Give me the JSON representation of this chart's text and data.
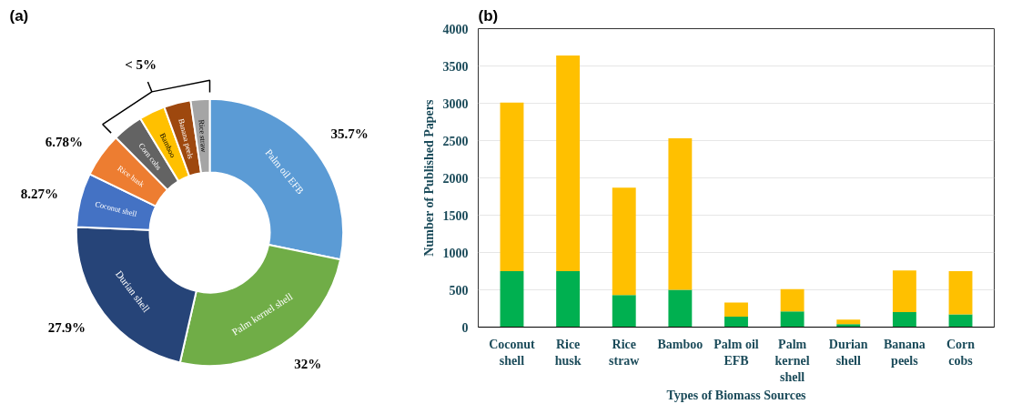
{
  "chart_data": [
    {
      "type": "donut",
      "title": "(a)",
      "categories": [
        "Palm oil EFB",
        "Palm kernel shell",
        "Durian shell",
        "Coconut shell",
        "Rice husk",
        "Corn cobs",
        "Bamboo",
        "Banana peels",
        "Rice straw"
      ],
      "values": [
        35.7,
        32,
        27.9,
        8.27,
        6.78,
        4.7,
        4.0,
        4.1,
        2.9
      ],
      "colors": [
        "#5b9bd5",
        "#70ad47",
        "#264478",
        "#4472c4",
        "#ed7d31",
        "#636363",
        "#ffc000",
        "#9e480e",
        "#a5a5a5"
      ],
      "value_labels": [
        "35.7%",
        "32%",
        "27.9%",
        "8.27%",
        "6.78%",
        null,
        null,
        null,
        null
      ],
      "annotations": [
        "< 5%"
      ]
    },
    {
      "type": "bar",
      "title": "(b)",
      "stacked": true,
      "categories": [
        "Coconut shell",
        "Rice husk",
        "Rice straw",
        "Bamboo",
        "Palm oil EFB",
        "Palm kernel shell",
        "Durian shell",
        "Banana peels",
        "Corn cobs"
      ],
      "series": [
        {
          "color": "#00b050",
          "values": [
            750,
            750,
            430,
            500,
            140,
            210,
            40,
            200,
            170
          ]
        },
        {
          "color": "#ffc000",
          "values": [
            2260,
            2890,
            1440,
            2030,
            190,
            300,
            60,
            560,
            580
          ]
        }
      ],
      "xlabel": "Types of Biomass Sources",
      "ylabel": "Number of Published Papers",
      "ylim": [
        0,
        4000
      ],
      "yticks": [
        0,
        500,
        1000,
        1500,
        2000,
        2500,
        3000,
        3500,
        4000
      ],
      "grid": "y"
    }
  ]
}
